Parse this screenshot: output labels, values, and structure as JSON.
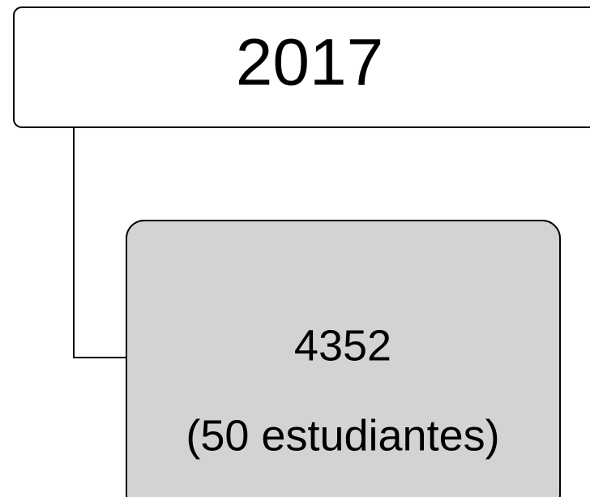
{
  "nodes": [
    {
      "label": "2017"
    },
    {
      "label": "4352"
    },
    {
      "label": "(50 estudiantes)"
    }
  ]
}
